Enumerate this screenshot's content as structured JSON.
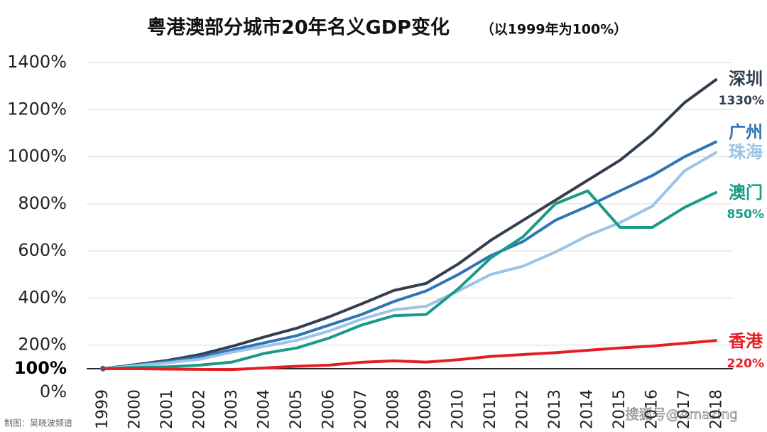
{
  "chart_data": {
    "type": "line",
    "title": "粤港澳部分城市20年名义GDP变化",
    "subtitle": "（以1999年为100%）",
    "categories": [
      "1999",
      "2000",
      "2001",
      "2002",
      "2003",
      "2004",
      "2005",
      "2006",
      "2007",
      "2008",
      "2009",
      "2010",
      "2011",
      "2012",
      "2013",
      "2014",
      "2015",
      "2016",
      "2017",
      "2018"
    ],
    "series": [
      {
        "name": "深圳",
        "color": "#333f50",
        "end_label": "1330%",
        "values": [
          100,
          117,
          135,
          160,
          195,
          235,
          272,
          320,
          375,
          432,
          462,
          545,
          645,
          730,
          815,
          900,
          985,
          1095,
          1230,
          1330
        ]
      },
      {
        "name": "广州",
        "color": "#2e75b6",
        "values": [
          100,
          115,
          130,
          150,
          180,
          210,
          240,
          285,
          330,
          385,
          430,
          500,
          580,
          640,
          730,
          790,
          855,
          920,
          1000,
          1065
        ]
      },
      {
        "name": "珠海",
        "color": "#9dc3e6",
        "values": [
          100,
          112,
          125,
          140,
          170,
          195,
          220,
          260,
          310,
          350,
          365,
          430,
          500,
          535,
          595,
          665,
          720,
          790,
          940,
          1020
        ]
      },
      {
        "name": "澳门",
        "color": "#179c88",
        "end_label": "850%",
        "values": [
          100,
          105,
          108,
          115,
          128,
          165,
          188,
          230,
          285,
          325,
          330,
          440,
          570,
          660,
          800,
          855,
          700,
          700,
          785,
          850
        ]
      },
      {
        "name": "香港",
        "color": "#e31e24",
        "end_label": "220%",
        "values": [
          100,
          100,
          98,
          97,
          96,
          103,
          110,
          115,
          127,
          133,
          128,
          138,
          152,
          160,
          168,
          178,
          188,
          196,
          208,
          220
        ]
      }
    ],
    "ylim": [
      0,
      1400
    ],
    "yticks": [
      {
        "value": 0,
        "label": "0%"
      },
      {
        "value": 200,
        "label": "200%"
      },
      {
        "value": 400,
        "label": "400%"
      },
      {
        "value": 600,
        "label": "600%"
      },
      {
        "value": 800,
        "label": "800%"
      },
      {
        "value": 1000,
        "label": "1000%"
      },
      {
        "value": 1200,
        "label": "1200%"
      },
      {
        "value": 1400,
        "label": "1400%"
      }
    ],
    "baseline": {
      "value": 100,
      "label": "100%"
    },
    "grid": true,
    "credit": "制图：吴晓波频道",
    "watermark": "搜狐号@Amazing"
  }
}
